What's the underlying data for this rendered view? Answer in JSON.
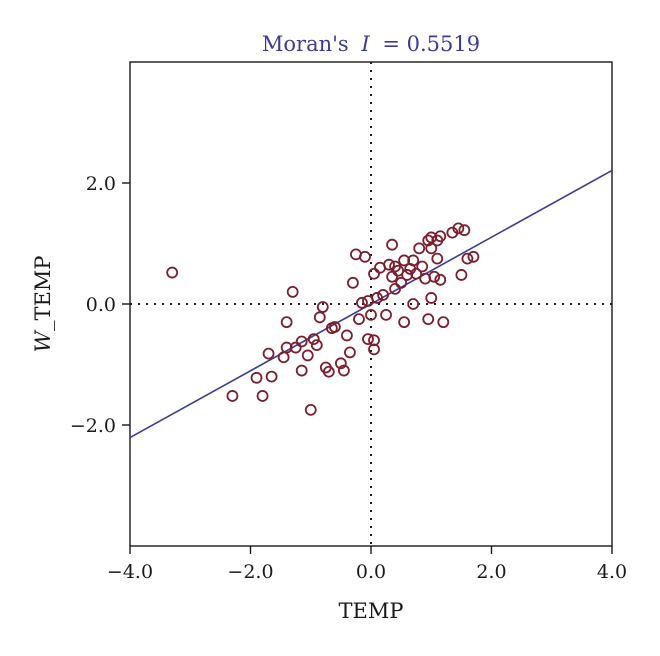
{
  "chart_data": {
    "type": "scatter",
    "title": "Moran's I = 0.5519",
    "title_prefix": "Moran's",
    "title_italic": "I",
    "title_suffix": "= 0.5519",
    "xlabel": "TEMP",
    "ylabel_italic": "W",
    "ylabel_rest": "_TEMP",
    "xlim": [
      -4.0,
      4.0
    ],
    "ylim": [
      -4.0,
      4.0
    ],
    "xticks": [
      -4.0,
      -2.0,
      0.0,
      2.0,
      4.0
    ],
    "xtick_labels": [
      "−4.0",
      "−2.0",
      "0.0",
      "2.0",
      "4.0"
    ],
    "yticks": [
      -2.0,
      0.0,
      2.0
    ],
    "ytick_labels": [
      "−2.0",
      "0.0",
      "2.0"
    ],
    "grid": false,
    "reference_lines": {
      "x": 0,
      "y": 0,
      "style": "dotted"
    },
    "regression_line": {
      "slope": 0.5519,
      "intercept": 0.0
    },
    "colors": {
      "points": "#7b1f2e",
      "line": "#3b3b9b",
      "title": "#3b3b9b"
    },
    "points": [
      [
        -3.3,
        0.52
      ],
      [
        -2.3,
        -1.52
      ],
      [
        -1.9,
        -1.22
      ],
      [
        -1.8,
        -1.52
      ],
      [
        -1.7,
        -0.82
      ],
      [
        -1.65,
        -1.2
      ],
      [
        -1.45,
        -0.88
      ],
      [
        -1.4,
        -0.3
      ],
      [
        -1.4,
        -0.72
      ],
      [
        -1.3,
        0.2
      ],
      [
        -1.25,
        -0.72
      ],
      [
        -1.15,
        -0.62
      ],
      [
        -1.15,
        -1.1
      ],
      [
        -1.05,
        -0.85
      ],
      [
        -1.0,
        -1.75
      ],
      [
        -0.95,
        -0.58
      ],
      [
        -0.9,
        -0.68
      ],
      [
        -0.85,
        -0.22
      ],
      [
        -0.8,
        -0.05
      ],
      [
        -0.75,
        -1.05
      ],
      [
        -0.7,
        -1.12
      ],
      [
        -0.65,
        -0.4
      ],
      [
        -0.6,
        -0.38
      ],
      [
        -0.5,
        -0.98
      ],
      [
        -0.45,
        -1.1
      ],
      [
        -0.4,
        -0.52
      ],
      [
        -0.35,
        -0.8
      ],
      [
        -0.3,
        0.35
      ],
      [
        -0.25,
        0.82
      ],
      [
        -0.2,
        -0.25
      ],
      [
        -0.15,
        0.02
      ],
      [
        -0.1,
        0.78
      ],
      [
        -0.05,
        0.05
      ],
      [
        -0.05,
        -0.58
      ],
      [
        0.0,
        -0.18
      ],
      [
        0.05,
        -0.75
      ],
      [
        0.05,
        0.5
      ],
      [
        0.05,
        -0.6
      ],
      [
        0.1,
        0.1
      ],
      [
        0.15,
        0.6
      ],
      [
        0.2,
        0.15
      ],
      [
        0.25,
        -0.18
      ],
      [
        0.3,
        0.65
      ],
      [
        0.35,
        0.98
      ],
      [
        0.35,
        0.45
      ],
      [
        0.4,
        0.62
      ],
      [
        0.4,
        0.25
      ],
      [
        0.45,
        0.55
      ],
      [
        0.5,
        0.35
      ],
      [
        0.55,
        -0.3
      ],
      [
        0.55,
        0.72
      ],
      [
        0.6,
        0.48
      ],
      [
        0.65,
        0.58
      ],
      [
        0.7,
        0.0
      ],
      [
        0.7,
        0.72
      ],
      [
        0.75,
        0.5
      ],
      [
        0.8,
        0.92
      ],
      [
        0.85,
        0.62
      ],
      [
        0.9,
        0.42
      ],
      [
        0.95,
        1.05
      ],
      [
        0.95,
        -0.25
      ],
      [
        1.0,
        1.1
      ],
      [
        1.0,
        0.92
      ],
      [
        1.0,
        0.1
      ],
      [
        1.05,
        0.45
      ],
      [
        1.1,
        1.05
      ],
      [
        1.1,
        0.75
      ],
      [
        1.15,
        1.12
      ],
      [
        1.15,
        0.4
      ],
      [
        1.2,
        -0.3
      ],
      [
        1.35,
        1.18
      ],
      [
        1.45,
        1.25
      ],
      [
        1.5,
        0.48
      ],
      [
        1.55,
        1.22
      ],
      [
        1.6,
        0.75
      ],
      [
        1.7,
        0.78
      ]
    ]
  }
}
